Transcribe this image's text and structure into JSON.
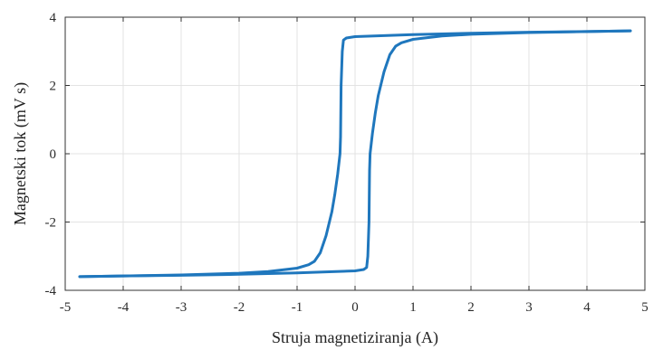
{
  "chart_data": {
    "type": "line",
    "title": "",
    "xlabel": "Struja magnetiziranja (A)",
    "ylabel": "Magnetski tok (mV s)",
    "xlim": [
      -5,
      5
    ],
    "ylim": [
      -4,
      4
    ],
    "xticks": [
      "-5",
      "-4",
      "-3",
      "-2",
      "-1",
      "0",
      "1",
      "2",
      "3",
      "4",
      "5"
    ],
    "yticks": [
      "-4",
      "-2",
      "0",
      "2",
      "4"
    ],
    "grid": true,
    "legend": "none",
    "colors": {
      "series": "#1f77bd",
      "grid": "#e3e3e3",
      "frame": "#333333"
    },
    "series": [
      {
        "branch": "upper",
        "x": [
          4.75,
          4.0,
          3.0,
          2.0,
          1.0,
          0.5,
          0.0,
          -0.15,
          -0.2,
          -0.22,
          -0.24,
          -0.25,
          -0.26,
          -0.28,
          -0.3,
          -0.35,
          -0.4,
          -0.5,
          -0.6,
          -0.7,
          -0.8,
          -1.0,
          -1.5,
          -2.0,
          -3.0,
          -4.0,
          -4.75
        ],
        "y": [
          3.6,
          3.58,
          3.56,
          3.53,
          3.49,
          3.46,
          3.43,
          3.39,
          3.33,
          3.0,
          2.0,
          0.5,
          0.0,
          -0.3,
          -0.6,
          -1.2,
          -1.7,
          -2.4,
          -2.9,
          -3.15,
          -3.25,
          -3.35,
          -3.45,
          -3.5,
          -3.55,
          -3.58,
          -3.6
        ]
      },
      {
        "branch": "lower",
        "x": [
          -4.75,
          -4.0,
          -3.0,
          -2.0,
          -1.0,
          -0.5,
          0.0,
          0.15,
          0.2,
          0.22,
          0.24,
          0.25,
          0.26,
          0.28,
          0.3,
          0.35,
          0.4,
          0.5,
          0.6,
          0.7,
          0.8,
          1.0,
          1.5,
          2.0,
          3.0,
          4.0,
          4.75
        ],
        "y": [
          -3.6,
          -3.58,
          -3.56,
          -3.53,
          -3.49,
          -3.46,
          -3.43,
          -3.39,
          -3.33,
          -3.0,
          -2.0,
          -0.5,
          0.0,
          0.3,
          0.6,
          1.2,
          1.7,
          2.4,
          2.9,
          3.15,
          3.25,
          3.35,
          3.45,
          3.5,
          3.55,
          3.58,
          3.6
        ]
      }
    ]
  }
}
